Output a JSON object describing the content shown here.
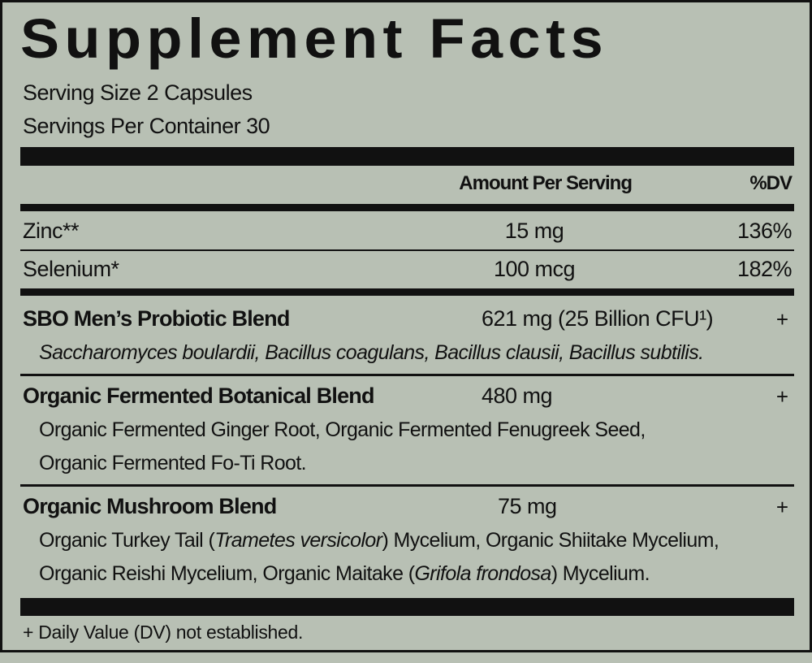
{
  "title": "Supplement Facts",
  "serving_size": "Serving Size 2 Capsules",
  "servings_per_container": "Servings Per Container 30",
  "header": {
    "amount": "Amount Per Serving",
    "dv": "%DV"
  },
  "nutrients": [
    {
      "name": "Zinc**",
      "amount": "15 mg",
      "dv": "136%"
    },
    {
      "name": "Selenium*",
      "amount": "100 mcg",
      "dv": "182%"
    }
  ],
  "blends": [
    {
      "name": "SBO Men’s Probiotic Blend",
      "amount": "621 mg (25 Billion CFU¹)",
      "dv": "+",
      "lines": [
        [
          {
            "text": "Saccharomyces boulardii, Bacillus coagulans, Bacillus clausii, Bacillus subtilis.",
            "italic": true
          }
        ]
      ]
    },
    {
      "name": "Organic Fermented Botanical Blend",
      "amount": "480 mg",
      "dv": "+",
      "lines": [
        [
          {
            "text": "Organic Fermented Ginger Root, Organic Fermented Fenugreek Seed,"
          }
        ],
        [
          {
            "text": "Organic Fermented Fo-Ti Root."
          }
        ]
      ]
    },
    {
      "name": "Organic Mushroom Blend",
      "amount": "75 mg",
      "dv": "+",
      "lines": [
        [
          {
            "text": "Organic Turkey Tail ("
          },
          {
            "text": "Trametes versicolor",
            "italic": true
          },
          {
            "text": ") Mycelium, Organic Shiitake Mycelium,"
          }
        ],
        [
          {
            "text": "Organic Reishi Mycelium, Organic Maitake ("
          },
          {
            "text": "Grifola frondosa",
            "italic": true
          },
          {
            "text": ") Mycelium."
          }
        ]
      ]
    }
  ],
  "footnote": "+ Daily Value (DV) not established."
}
